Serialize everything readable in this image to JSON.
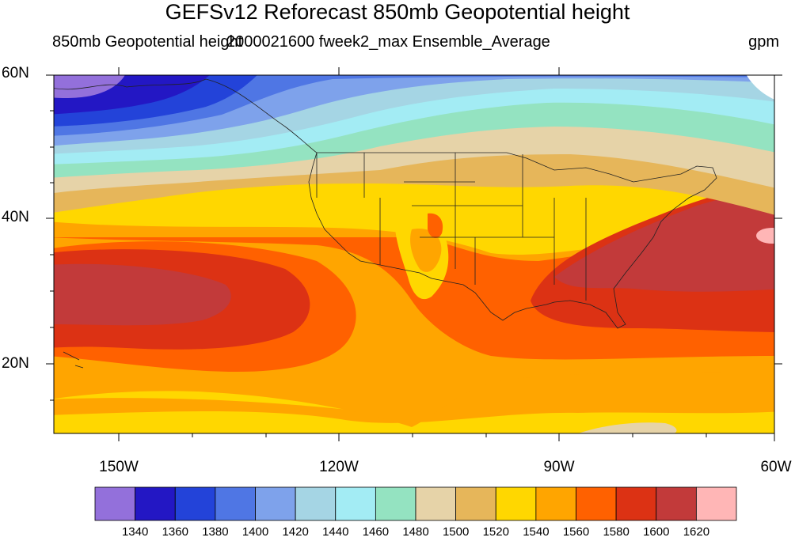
{
  "header": {
    "title": "GEFSv12 Reforecast 850mb Geopotential height",
    "left_subtitle": "850mb Geopotential height",
    "center_subtitle": "2000021600 fweek2_max Ensemble_Average",
    "right_subtitle": "gpm"
  },
  "map": {
    "lat_labels": [
      "60N",
      "40N",
      "20N"
    ],
    "lon_labels": [
      "150W",
      "120W",
      "90W",
      "60W"
    ]
  },
  "colorbar": {
    "colors": [
      "#9370db",
      "#2317c4",
      "#2343d9",
      "#4f76e4",
      "#7ea2eb",
      "#a5d5e4",
      "#a3ecf4",
      "#94e3c1",
      "#e6d3a8",
      "#e6b65a",
      "#ffd700",
      "#ffa500",
      "#ff6100",
      "#dc3214",
      "#c23a3a",
      "#ffb6b6"
    ],
    "labels": [
      "1340",
      "1360",
      "1380",
      "1400",
      "1420",
      "1440",
      "1460",
      "1480",
      "1500",
      "1520",
      "1540",
      "1560",
      "1580",
      "1600",
      "1620"
    ]
  }
}
